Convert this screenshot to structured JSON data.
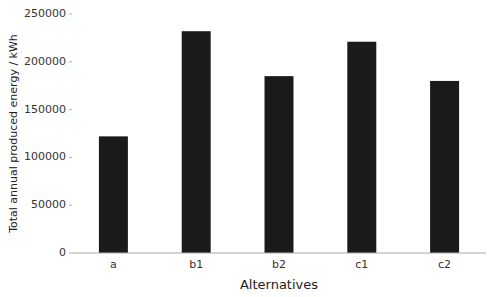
{
  "chart_data": {
    "type": "bar",
    "xlabel": "Alternatives",
    "ylabel": "Total annual produced energy / kWh",
    "categories": [
      "a",
      "b1",
      "b2",
      "c1",
      "c2"
    ],
    "values": [
      122000,
      232000,
      185000,
      221000,
      180000
    ],
    "color": "#1a1a1a",
    "ylim": [
      0,
      250000
    ],
    "yticks": [
      0,
      50000,
      100000,
      150000,
      200000,
      250000
    ],
    "grid": false
  }
}
